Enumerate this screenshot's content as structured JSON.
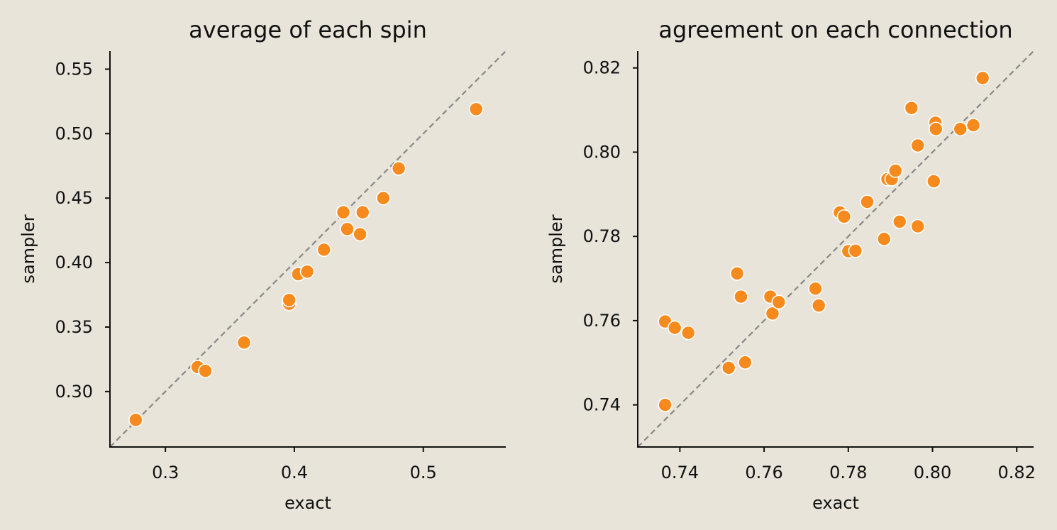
{
  "colors": {
    "background": "#e8e4da",
    "point": "#f78a1d",
    "point_edge": "#ffffff",
    "reference_line": "#888888"
  },
  "chart_data": [
    {
      "type": "scatter",
      "title": "average of each spin",
      "xlabel": "exact",
      "ylabel": "sampler",
      "xlim": [
        0.257,
        0.564
      ],
      "ylim": [
        0.257,
        0.564
      ],
      "xticks": [
        {
          "value": 0.3,
          "label": "0.3"
        },
        {
          "value": 0.4,
          "label": "0.4"
        },
        {
          "value": 0.5,
          "label": "0.5"
        }
      ],
      "yticks": [
        {
          "value": 0.3,
          "label": "0.30"
        },
        {
          "value": 0.35,
          "label": "0.35"
        },
        {
          "value": 0.4,
          "label": "0.40"
        },
        {
          "value": 0.45,
          "label": "0.45"
        },
        {
          "value": 0.5,
          "label": "0.50"
        },
        {
          "value": 0.55,
          "label": "0.55"
        }
      ],
      "reference_line": "y = x",
      "grid": false,
      "x": [
        0.277,
        0.325,
        0.331,
        0.361,
        0.396,
        0.396,
        0.403,
        0.41,
        0.423,
        0.438,
        0.441,
        0.451,
        0.453,
        0.469,
        0.481,
        0.541
      ],
      "y": [
        0.278,
        0.319,
        0.316,
        0.338,
        0.368,
        0.371,
        0.391,
        0.393,
        0.41,
        0.439,
        0.426,
        0.422,
        0.439,
        0.45,
        0.473,
        0.519
      ]
    },
    {
      "type": "scatter",
      "title": "agreement on each connection",
      "xlabel": "exact",
      "ylabel": "sampler",
      "xlim": [
        0.73,
        0.824
      ],
      "ylim": [
        0.73,
        0.824
      ],
      "xticks": [
        {
          "value": 0.74,
          "label": "0.74"
        },
        {
          "value": 0.76,
          "label": "0.76"
        },
        {
          "value": 0.78,
          "label": "0.78"
        },
        {
          "value": 0.8,
          "label": "0.80"
        },
        {
          "value": 0.82,
          "label": "0.82"
        }
      ],
      "yticks": [
        {
          "value": 0.74,
          "label": "0.74"
        },
        {
          "value": 0.76,
          "label": "0.76"
        },
        {
          "value": 0.78,
          "label": "0.78"
        },
        {
          "value": 0.8,
          "label": "0.80"
        },
        {
          "value": 0.82,
          "label": "0.82"
        }
      ],
      "reference_line": "y = x",
      "grid": false,
      "x": [
        0.7365,
        0.7365,
        0.7388,
        0.742,
        0.7516,
        0.7536,
        0.7545,
        0.7555,
        0.7615,
        0.762,
        0.7635,
        0.7722,
        0.773,
        0.778,
        0.779,
        0.78,
        0.7817,
        0.7845,
        0.7885,
        0.7893,
        0.7903,
        0.7912,
        0.7922,
        0.795,
        0.7965,
        0.7965,
        0.8003,
        0.8007,
        0.8008,
        0.8066,
        0.8097,
        0.8119
      ],
      "y": [
        0.7598,
        0.74,
        0.7583,
        0.7571,
        0.7488,
        0.7712,
        0.7657,
        0.7501,
        0.7657,
        0.7617,
        0.7644,
        0.7676,
        0.7636,
        0.7857,
        0.7847,
        0.7765,
        0.7766,
        0.7882,
        0.7794,
        0.7936,
        0.7936,
        0.7956,
        0.7835,
        0.8105,
        0.8016,
        0.7824,
        0.7931,
        0.807,
        0.8055,
        0.8055,
        0.8064,
        0.8176
      ]
    }
  ]
}
